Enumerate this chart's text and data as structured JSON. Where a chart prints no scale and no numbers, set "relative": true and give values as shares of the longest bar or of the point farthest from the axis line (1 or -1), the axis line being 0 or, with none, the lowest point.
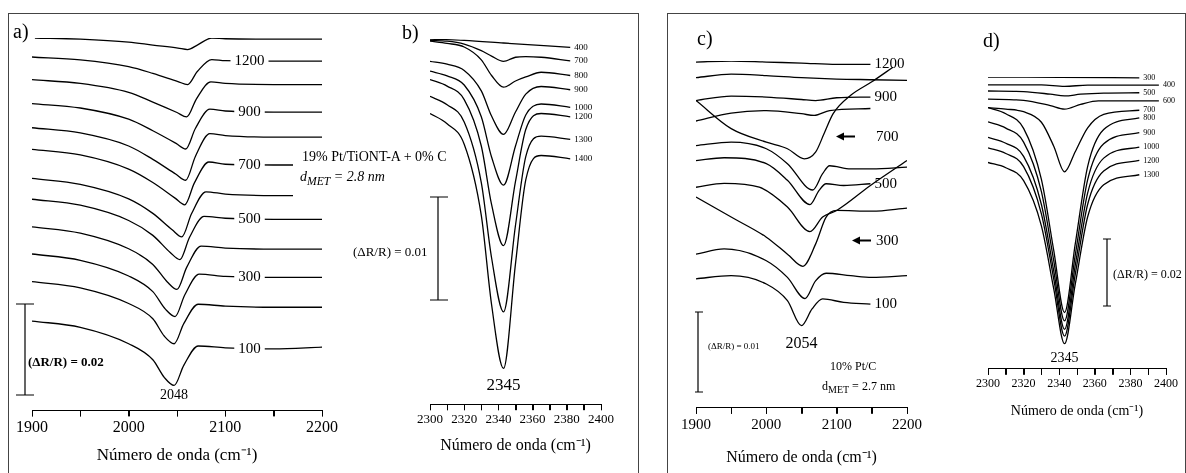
{
  "chart_data": [
    {
      "type": "line",
      "title": "a)",
      "xlabel": "Número de onda (cm⁻¹)",
      "relative": true,
      "marker": "none",
      "line_style": "solid",
      "xlim": [
        1900,
        2200
      ],
      "xticks": [
        1900,
        {
          "value": 1950,
          "label": null
        },
        2000,
        {
          "value": 2050,
          "label": null
        },
        2100,
        {
          "value": 2150,
          "label": null
        },
        2200
      ],
      "series": [
        {
          "color": "#000000",
          "x": [
            1903,
            1950,
            2000,
            2025,
            2051,
            2061,
            2071,
            2086,
            2100,
            2150,
            2200
          ],
          "values": [
            1,
            0.997,
            0.989,
            0.981,
            0.973,
            0.969,
            0.981,
            1,
            0.998,
            0.997,
            0.997
          ]
        },
        {
          "color": "#000000",
          "x": [
            1900,
            1950,
            2000,
            2025,
            2051,
            2061,
            2071,
            2086,
            2100,
            2150,
            2200
          ],
          "values": [
            0.949,
            0.941,
            0.923,
            0.905,
            0.883,
            0.875,
            0.91,
            0.942,
            0.939,
            0.938,
            0.938
          ]
        },
        {
          "color": "#000000",
          "x": [
            1900,
            1950,
            2000,
            2025,
            2050,
            2060,
            2070,
            2085,
            2100,
            2150,
            2200
          ],
          "values": [
            0.888,
            0.878,
            0.854,
            0.828,
            0.8,
            0.788,
            0.836,
            0.882,
            0.878,
            0.875,
            0.875
          ]
        },
        {
          "color": "#000000",
          "x": [
            1900,
            1950,
            2000,
            2025,
            2049,
            2059,
            2069,
            2084,
            2100,
            2150,
            2200
          ],
          "values": [
            0.824,
            0.812,
            0.782,
            0.751,
            0.717,
            0.702,
            0.757,
            0.809,
            0.804,
            0.801,
            0.801
          ]
        },
        {
          "color": "#000000",
          "x": [
            1900,
            1950,
            2000,
            2025,
            2049,
            2059,
            2069,
            2084,
            2100,
            2150,
            2200
          ],
          "values": [
            0.759,
            0.745,
            0.71,
            0.674,
            0.634,
            0.618,
            0.682,
            0.743,
            0.738,
            0.734,
            0.734
          ]
        },
        {
          "color": "#000000",
          "x": [
            1900,
            1950,
            2000,
            2025,
            2048,
            2058,
            2068,
            2083,
            2100,
            2150,
            2170
          ],
          "values": [
            0.701,
            0.686,
            0.648,
            0.612,
            0.57,
            0.552,
            0.611,
            0.667,
            0.661,
            0.659,
            0.659
          ]
        },
        {
          "color": "#000000",
          "x": [
            1900,
            1950,
            2000,
            2025,
            2045,
            2055,
            2065,
            2080,
            2100,
            2150,
            2170
          ],
          "values": [
            0.623,
            0.607,
            0.568,
            0.529,
            0.485,
            0.466,
            0.528,
            0.587,
            0.581,
            0.577,
            0.577
          ]
        },
        {
          "color": "#000000",
          "x": [
            1900,
            1950,
            2000,
            2025,
            2043,
            2053,
            2063,
            2078,
            2100,
            2150,
            2200
          ],
          "values": [
            0.567,
            0.551,
            0.51,
            0.47,
            0.424,
            0.405,
            0.465,
            0.521,
            0.516,
            0.513,
            0.513
          ]
        },
        {
          "color": "#000000",
          "x": [
            1900,
            1950,
            2000,
            2025,
            2040,
            2050,
            2060,
            2075,
            2100,
            2150,
            2200
          ],
          "values": [
            0.493,
            0.476,
            0.434,
            0.392,
            0.345,
            0.325,
            0.384,
            0.441,
            0.436,
            0.433,
            0.433
          ]
        },
        {
          "color": "#000000",
          "x": [
            1900,
            1950,
            2000,
            2025,
            2038,
            2048,
            2058,
            2073,
            2100,
            2150,
            2200
          ],
          "values": [
            0.42,
            0.403,
            0.361,
            0.319,
            0.272,
            0.252,
            0.31,
            0.366,
            0.36,
            0.357,
            0.357
          ]
        },
        {
          "color": "#000000",
          "x": [
            1900,
            1950,
            2000,
            2025,
            2037,
            2047,
            2057,
            2072,
            2100,
            2150,
            2200
          ],
          "values": [
            0.346,
            0.329,
            0.287,
            0.246,
            0.199,
            0.179,
            0.233,
            0.285,
            0.28,
            0.277,
            0.277
          ]
        },
        {
          "color": "#000000",
          "x": [
            1900,
            1950,
            2000,
            2025,
            2037,
            2047,
            2057,
            2072,
            2100,
            2150,
            2200
          ],
          "values": [
            0.24,
            0.223,
            0.179,
            0.136,
            0.088,
            0.067,
            0.121,
            0.173,
            0.168,
            0.165,
            0.17
          ]
        }
      ],
      "annotations": [
        {
          "text": "1200",
          "x": 2125,
          "y": 0.938
        },
        {
          "text": "900",
          "x": 2125,
          "y": 0.801
        },
        {
          "text": "700",
          "x": 2125,
          "y": 0.659
        },
        {
          "text": "500",
          "x": 2125,
          "y": 0.513
        },
        {
          "text": "300",
          "x": 2125,
          "y": 0.357
        },
        {
          "text": "100",
          "x": 2125,
          "y": 0.165
        },
        {
          "text": "2048",
          "x": 2047,
          "y": 0.067
        },
        "19% Pt/TiONT-A + 0% C",
        "d$_{MET}$ = 2.8 nm",
        "(ΔR/R) = 0.02"
      ]
    },
    {
      "type": "line",
      "title": "b)",
      "xlabel": "Número de onda (cm⁻¹)",
      "relative": true,
      "marker": "none",
      "line_style": "solid",
      "xlim": [
        2300,
        2400
      ],
      "xticks": [
        2300,
        {
          "value": 2310,
          "label": null
        },
        2320,
        {
          "value": 2330,
          "label": null
        },
        2340,
        {
          "value": 2350,
          "label": null
        },
        2360,
        {
          "value": 2370,
          "label": null
        },
        2380,
        {
          "value": 2390,
          "label": null
        },
        2400
      ],
      "series": [
        {
          "name": "400",
          "color": "#000000",
          "x": [
            2300,
            2320,
            2343,
            2382
          ],
          "values": [
            1,
            0.996,
            0.989,
            0.977
          ]
        },
        {
          "name": "700",
          "color": "#000000",
          "x": [
            2300,
            2310,
            2320,
            2330,
            2336,
            2343,
            2350,
            2356,
            2365,
            2382
          ],
          "values": [
            0.996,
            0.994,
            0.986,
            0.968,
            0.953,
            0.939,
            0.95,
            0.952,
            0.95,
            0.94
          ]
        },
        {
          "name": "800",
          "color": "#000000",
          "x": [
            2300,
            2310,
            2320,
            2330,
            2336,
            2343,
            2350,
            2356,
            2365,
            2382
          ],
          "values": [
            0.994,
            0.988,
            0.978,
            0.943,
            0.9,
            0.868,
            0.885,
            0.896,
            0.909,
            0.9
          ]
        },
        {
          "name": "900",
          "color": "#000000",
          "x": [
            2300,
            2310,
            2320,
            2330,
            2336,
            2343,
            2350,
            2356,
            2365,
            2382
          ],
          "values": [
            0.939,
            0.931,
            0.914,
            0.858,
            0.789,
            0.739,
            0.8,
            0.849,
            0.87,
            0.861
          ]
        },
        {
          "name": "1000",
          "color": "#000000",
          "x": [
            2300,
            2310,
            2320,
            2330,
            2336,
            2343,
            2350,
            2356,
            2365,
            2382
          ],
          "values": [
            0.912,
            0.899,
            0.874,
            0.787,
            0.677,
            0.6,
            0.707,
            0.792,
            0.822,
            0.813
          ]
        },
        {
          "name": "1200",
          "color": "#000000",
          "x": [
            2300,
            2310,
            2320,
            2330,
            2336,
            2343,
            2350,
            2356,
            2365,
            2382
          ],
          "values": [
            0.889,
            0.871,
            0.834,
            0.707,
            0.547,
            0.434,
            0.61,
            0.752,
            0.796,
            0.787
          ]
        },
        {
          "name": "1300",
          "color": "#000000",
          "x": [
            2300,
            2310,
            2320,
            2330,
            2336,
            2343,
            2350,
            2356,
            2365,
            2382
          ],
          "values": [
            0.843,
            0.82,
            0.773,
            0.607,
            0.401,
            0.253,
            0.49,
            0.678,
            0.734,
            0.725
          ]
        },
        {
          "name": "1400",
          "color": "#000000",
          "x": [
            2300,
            2310,
            2320,
            2330,
            2336,
            2343,
            2350,
            2356,
            2365,
            2382
          ],
          "values": [
            0.796,
            0.768,
            0.712,
            0.517,
            0.273,
            0.098,
            0.385,
            0.614,
            0.681,
            0.672
          ]
        }
      ],
      "annotations": [
        {
          "text": "2345",
          "x": 2343,
          "y": 0.098
        },
        "(ΔR/R) = 0.01"
      ]
    },
    {
      "type": "line",
      "title": "c)",
      "xlabel": "Número de onda (cm⁻¹)",
      "relative": true,
      "marker": "none",
      "line_style": "solid",
      "xlim": [
        1900,
        2200
      ],
      "xticks": [
        1900,
        {
          "value": 1950,
          "label": null
        },
        2000,
        {
          "value": 2050,
          "label": null
        },
        2100,
        {
          "value": 2150,
          "label": null
        },
        2200
      ],
      "series": [
        {
          "name": "1200",
          "color": "#000000",
          "x": [
            1900,
            1950,
            2000,
            2050,
            2100,
            2148
          ],
          "values": [
            0.997,
            1,
            0.997,
            0.994,
            0.99,
            0.99
          ]
        },
        {
          "color": "#000000",
          "x": [
            1900,
            1950,
            2000,
            2050,
            2100,
            2150,
            2200
          ],
          "values": [
            0.952,
            0.962,
            0.958,
            0.952,
            0.948,
            0.946,
            0.944
          ]
        },
        {
          "name": "900",
          "color": "#000000",
          "x": [
            1900,
            1950,
            2000,
            2050,
            2070,
            2100,
            2148
          ],
          "values": [
            0.886,
            0.899,
            0.896,
            0.889,
            0.886,
            0.894,
            0.896
          ]
        },
        {
          "color": "#000000",
          "x": [
            1900,
            1950,
            2000,
            2050,
            2068,
            2090,
            2148
          ],
          "values": [
            0.827,
            0.85,
            0.857,
            0.848,
            0.843,
            0.857,
            0.863
          ]
        },
        {
          "color": "#000000",
          "x": [
            1900,
            1950,
            2000,
            2030,
            2054,
            2070,
            2082,
            2095,
            2120,
            2150,
            2180
          ],
          "values": [
            0.886,
            0.805,
            0.766,
            0.747,
            0.718,
            0.737,
            0.79,
            0.848,
            0.901,
            0.94,
            0.982
          ]
        },
        {
          "color": "#000000",
          "x": [
            1900,
            1950,
            2000,
            2030,
            2066,
            2080,
            2090,
            2120,
            2150,
            2200
          ],
          "values": [
            0.756,
            0.766,
            0.747,
            0.704,
            0.628,
            0.675,
            0.698,
            0.689,
            0.689,
            0.694
          ]
        },
        {
          "name": "500",
          "color": "#000000",
          "x": [
            1900,
            1940,
            2000,
            2030,
            2062,
            2075,
            2085,
            2110,
            2148
          ],
          "values": [
            0.713,
            0.721,
            0.704,
            0.656,
            0.586,
            0.627,
            0.646,
            0.641,
            0.646
          ]
        },
        {
          "color": "#000000",
          "x": [
            1900,
            1940,
            1990,
            2030,
            2062,
            2080,
            2100,
            2148,
            2200
          ],
          "values": [
            0.636,
            0.647,
            0.636,
            0.579,
            0.508,
            0.55,
            0.569,
            0.641,
            0.713
          ]
        },
        {
          "color": "#000000",
          "x": [
            1900,
            1950,
            2000,
            2030,
            2052,
            2070,
            2085,
            2100,
            2150,
            2200
          ],
          "values": [
            0.608,
            0.55,
            0.492,
            0.443,
            0.408,
            0.472,
            0.55,
            0.569,
            0.567,
            0.576
          ]
        },
        {
          "color": "#000000",
          "x": [
            1900,
            1940,
            2000,
            2030,
            2055,
            2070,
            2085,
            2120,
            2150,
            2200
          ],
          "values": [
            0.443,
            0.458,
            0.424,
            0.376,
            0.315,
            0.366,
            0.388,
            0.381,
            0.376,
            0.381
          ]
        },
        {
          "name": "100",
          "color": "#000000",
          "x": [
            1900,
            1950,
            2000,
            2030,
            2050,
            2065,
            2080,
            2110,
            2148
          ],
          "values": [
            0.372,
            0.381,
            0.357,
            0.309,
            0.237,
            0.285,
            0.314,
            0.304,
            0.299
          ]
        }
      ],
      "annotations": [
        {
          "text": "2054",
          "x": 2050,
          "y": 0.237
        },
        "700",
        "300",
        "(ΔR/R) = 0.01",
        "10% Pt/C",
        "d$_{MET}$ = 2.7 nm"
      ]
    },
    {
      "type": "line",
      "title": "d)",
      "xlabel": "Número de onda (cm⁻¹)",
      "relative": true,
      "marker": "none",
      "line_style": "solid",
      "xlim": [
        2300,
        2400
      ],
      "xticks": [
        2300,
        {
          "value": 2310,
          "label": null
        },
        2320,
        {
          "value": 2330,
          "label": null
        },
        2340,
        {
          "value": 2350,
          "label": null
        },
        2360,
        {
          "value": 2370,
          "label": null
        },
        2380,
        {
          "value": 2390,
          "label": null
        },
        2400
      ],
      "series": [
        {
          "name": "300",
          "color": "#000000",
          "x": [
            2300,
            2340,
            2385
          ],
          "values": [
            1,
            0.999,
            0.997
          ]
        },
        {
          "name": "400",
          "color": "#000000",
          "x": [
            2300,
            2330,
            2343,
            2356,
            2396
          ],
          "values": [
            0.973,
            0.973,
            0.968,
            0.972,
            0.972
          ]
        },
        {
          "name": "500",
          "color": "#000000",
          "x": [
            2300,
            2320,
            2335,
            2343,
            2352,
            2365,
            2385
          ],
          "values": [
            0.952,
            0.95,
            0.941,
            0.935,
            0.941,
            0.945,
            0.946
          ]
        },
        {
          "name": "600",
          "color": "#000000",
          "x": [
            2300,
            2320,
            2335,
            2343,
            2352,
            2362,
            2396
          ],
          "values": [
            0.924,
            0.92,
            0.902,
            0.89,
            0.906,
            0.918,
            0.918
          ]
        },
        {
          "name": "700",
          "color": "#000000",
          "x": [
            2300,
            2310,
            2320,
            2330,
            2337,
            2343,
            2349,
            2356,
            2365,
            2385
          ],
          "values": [
            0.895,
            0.89,
            0.881,
            0.845,
            0.762,
            0.675,
            0.744,
            0.826,
            0.872,
            0.886
          ]
        },
        {
          "name": "800",
          "color": "#000000",
          "x": [
            2300,
            2310,
            2320,
            2330,
            2337,
            2343,
            2349,
            2356,
            2365,
            2385
          ],
          "values": [
            0.895,
            0.874,
            0.824,
            0.649,
            0.403,
            0.193,
            0.427,
            0.694,
            0.82,
            0.86
          ]
        },
        {
          "name": "900",
          "color": "#000000",
          "x": [
            2300,
            2310,
            2320,
            2330,
            2337,
            2343,
            2349,
            2356,
            2365,
            2385
          ],
          "values": [
            0.846,
            0.825,
            0.777,
            0.607,
            0.368,
            0.164,
            0.389,
            0.648,
            0.771,
            0.809
          ]
        },
        {
          "name": "1000",
          "color": "#000000",
          "x": [
            2300,
            2310,
            2320,
            2330,
            2337,
            2343,
            2349,
            2356,
            2365,
            2385
          ],
          "values": [
            0.793,
            0.773,
            0.728,
            0.563,
            0.333,
            0.135,
            0.354,
            0.603,
            0.722,
            0.76
          ]
        },
        {
          "name": "1200",
          "color": "#000000",
          "x": [
            2300,
            2310,
            2320,
            2330,
            2337,
            2343,
            2349,
            2356,
            2365,
            2385
          ],
          "values": [
            0.757,
            0.738,
            0.693,
            0.531,
            0.306,
            0.112,
            0.323,
            0.564,
            0.678,
            0.714
          ]
        },
        {
          "name": "1300",
          "color": "#000000",
          "x": [
            2300,
            2310,
            2320,
            2330,
            2337,
            2343,
            2349,
            2356,
            2365,
            2385
          ],
          "values": [
            0.707,
            0.689,
            0.645,
            0.49,
            0.272,
            0.086,
            0.289,
            0.521,
            0.631,
            0.665
          ]
        }
      ],
      "annotations": [
        {
          "text": "2345",
          "x": 2343,
          "y": 0.086
        },
        "(ΔR/R) = 0.02"
      ]
    }
  ]
}
